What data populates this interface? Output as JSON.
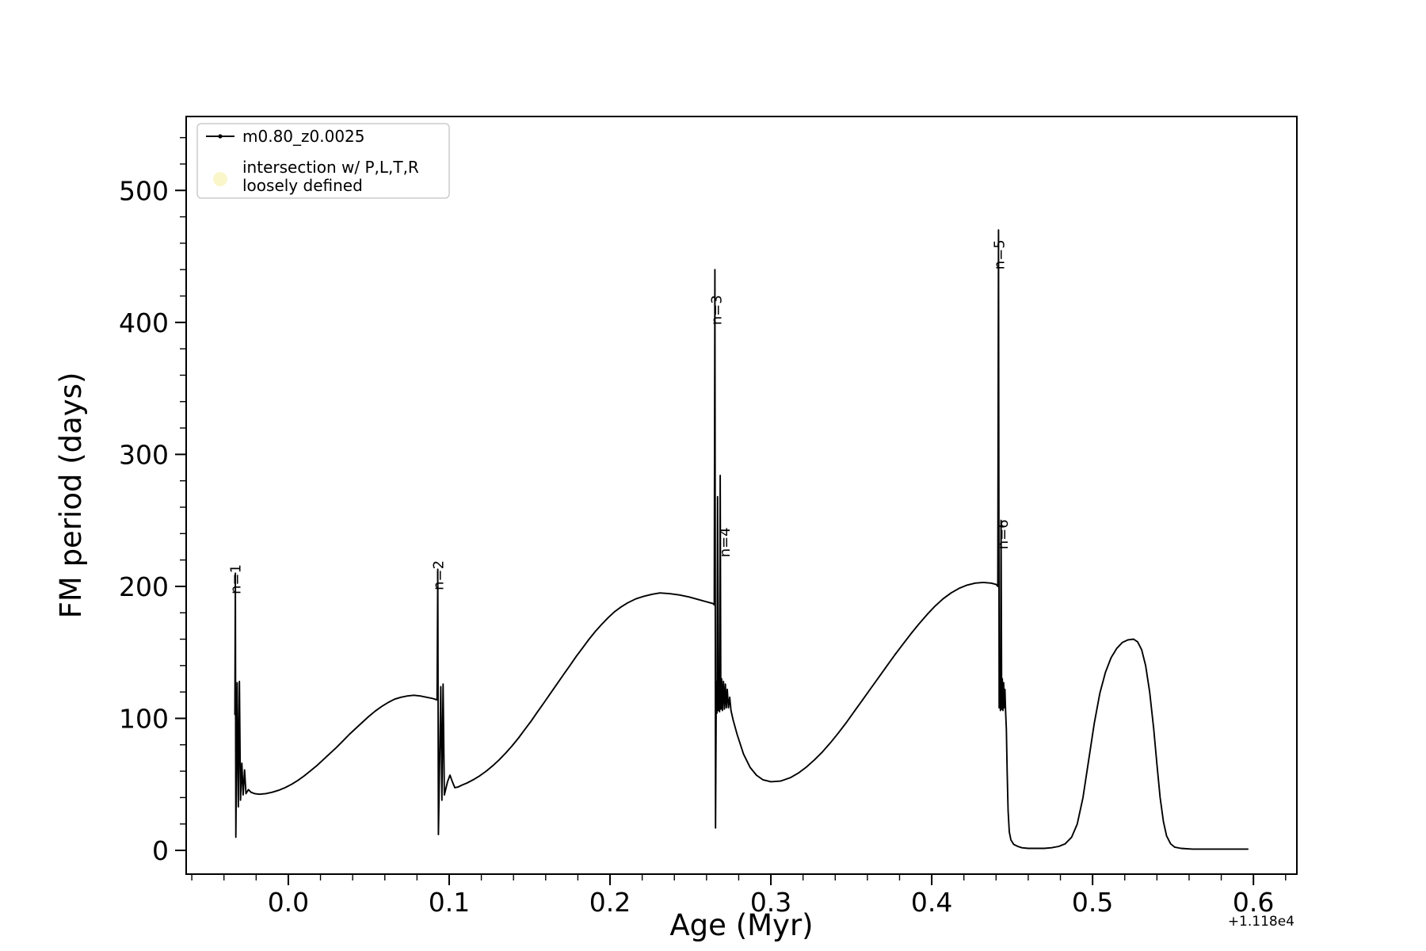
{
  "figure": {
    "background": "#ffffff"
  },
  "chart_data": {
    "type": "line",
    "title": "",
    "xlabel": "Age (Myr)",
    "ylabel": "FM period (days)",
    "x_offset_text": "+1.118e4",
    "xlim": [
      -0.0635,
      0.627
    ],
    "ylim": [
      -18,
      556
    ],
    "grid": false,
    "x_major_ticks": [
      0.0,
      0.1,
      0.2,
      0.3,
      0.4,
      0.5,
      0.6
    ],
    "x_major_tick_labels": [
      "0.0",
      "0.1",
      "0.2",
      "0.3",
      "0.4",
      "0.5",
      "0.6"
    ],
    "x_minor_step": 0.02,
    "y_major_ticks": [
      0,
      100,
      200,
      300,
      400,
      500
    ],
    "y_major_tick_labels": [
      "0",
      "100",
      "200",
      "300",
      "400",
      "500"
    ],
    "y_minor_step": 20,
    "axis_color": "#000000",
    "legend": {
      "position": "upper-left",
      "entries": [
        {
          "type": "line-dot-marker",
          "color": "#000000",
          "label": "m0.80_z0.0025"
        },
        {
          "type": "circle-marker",
          "color": "#f8f2b3",
          "opacity": 0.7,
          "label_lines": [
            "intersection w/ P,L,T,R",
            "loosely defined"
          ]
        }
      ]
    },
    "annotations": [
      {
        "label": "n=1",
        "x": -0.0298,
        "y": 194,
        "rotation": 90
      },
      {
        "label": "n=2",
        "x": 0.0962,
        "y": 197,
        "rotation": 90
      },
      {
        "label": "n=3",
        "x": 0.2692,
        "y": 398,
        "rotation": 90
      },
      {
        "label": "n=4",
        "x": 0.2743,
        "y": 222,
        "rotation": 90
      },
      {
        "label": "n=5",
        "x": 0.4449,
        "y": 440,
        "rotation": 90
      },
      {
        "label": "n=6",
        "x": 0.4472,
        "y": 228,
        "rotation": 90
      }
    ],
    "series": [
      {
        "name": "m0.80_z0.0025",
        "color": "#000000",
        "marker": "dot",
        "linestyle": "solid",
        "points": [
          [
            -0.0332,
            103
          ],
          [
            -0.0329,
            210
          ],
          [
            -0.0326,
            10
          ],
          [
            -0.0318,
            127
          ],
          [
            -0.0311,
            33
          ],
          [
            -0.0304,
            128
          ],
          [
            -0.0297,
            38
          ],
          [
            -0.0289,
            66
          ],
          [
            -0.0281,
            42
          ],
          [
            -0.0272,
            61
          ],
          [
            -0.0263,
            43
          ],
          [
            -0.0248,
            46
          ],
          [
            -0.0232,
            44
          ],
          [
            -0.021,
            43
          ],
          [
            -0.018,
            42.5
          ],
          [
            -0.014,
            43
          ],
          [
            -0.01,
            44
          ],
          [
            -0.006,
            45.5
          ],
          [
            -0.002,
            47.5
          ],
          [
            0.002,
            50
          ],
          [
            0.006,
            53
          ],
          [
            0.01,
            56.5
          ],
          [
            0.014,
            60.5
          ],
          [
            0.018,
            64.5
          ],
          [
            0.022,
            69
          ],
          [
            0.026,
            73.5
          ],
          [
            0.03,
            78
          ],
          [
            0.034,
            83
          ],
          [
            0.038,
            88
          ],
          [
            0.042,
            92.5
          ],
          [
            0.046,
            97
          ],
          [
            0.05,
            101.5
          ],
          [
            0.054,
            105.5
          ],
          [
            0.058,
            109
          ],
          [
            0.062,
            112
          ],
          [
            0.066,
            114.5
          ],
          [
            0.07,
            116
          ],
          [
            0.074,
            117
          ],
          [
            0.078,
            117.5
          ],
          [
            0.082,
            117
          ],
          [
            0.086,
            116
          ],
          [
            0.09,
            115
          ],
          [
            0.0925,
            114
          ],
          [
            0.0929,
            213
          ],
          [
            0.0933,
            12
          ],
          [
            0.0941,
            70
          ],
          [
            0.0948,
            124
          ],
          [
            0.0955,
            38
          ],
          [
            0.0962,
            126
          ],
          [
            0.097,
            42
          ],
          [
            0.0978,
            46
          ],
          [
            0.099,
            52
          ],
          [
            0.1005,
            57
          ],
          [
            0.102,
            52
          ],
          [
            0.1035,
            47.5
          ],
          [
            0.1055,
            48
          ],
          [
            0.108,
            49.5
          ],
          [
            0.111,
            51
          ],
          [
            0.115,
            53.5
          ],
          [
            0.119,
            56.5
          ],
          [
            0.123,
            60
          ],
          [
            0.127,
            64
          ],
          [
            0.131,
            68.5
          ],
          [
            0.135,
            73.5
          ],
          [
            0.139,
            79
          ],
          [
            0.143,
            85
          ],
          [
            0.147,
            91.5
          ],
          [
            0.151,
            98
          ],
          [
            0.155,
            105
          ],
          [
            0.159,
            112
          ],
          [
            0.163,
            119
          ],
          [
            0.167,
            126
          ],
          [
            0.171,
            133
          ],
          [
            0.175,
            140
          ],
          [
            0.179,
            147
          ],
          [
            0.183,
            153.5
          ],
          [
            0.187,
            160
          ],
          [
            0.191,
            166
          ],
          [
            0.195,
            171.5
          ],
          [
            0.199,
            176.5
          ],
          [
            0.203,
            181
          ],
          [
            0.207,
            184.5
          ],
          [
            0.211,
            187.5
          ],
          [
            0.216,
            190.5
          ],
          [
            0.221,
            192.5
          ],
          [
            0.226,
            194
          ],
          [
            0.231,
            195
          ],
          [
            0.237,
            194.5
          ],
          [
            0.243,
            193.5
          ],
          [
            0.249,
            192
          ],
          [
            0.255,
            190
          ],
          [
            0.261,
            188
          ],
          [
            0.264,
            187
          ],
          [
            0.2648,
            186
          ],
          [
            0.2652,
            440
          ],
          [
            0.2656,
            17
          ],
          [
            0.2661,
            128
          ],
          [
            0.2665,
            104
          ],
          [
            0.2669,
            268
          ],
          [
            0.2673,
            106
          ],
          [
            0.2677,
            131
          ],
          [
            0.2681,
            105
          ],
          [
            0.2685,
            284
          ],
          [
            0.2689,
            107
          ],
          [
            0.2694,
            130
          ],
          [
            0.2699,
            106
          ],
          [
            0.2705,
            128
          ],
          [
            0.2711,
            107
          ],
          [
            0.2717,
            126
          ],
          [
            0.2723,
            108
          ],
          [
            0.2729,
            122
          ],
          [
            0.2736,
            108
          ],
          [
            0.2744,
            116
          ],
          [
            0.2752,
            106
          ],
          [
            0.2765,
            99
          ],
          [
            0.279,
            88
          ],
          [
            0.283,
            73
          ],
          [
            0.287,
            63
          ],
          [
            0.291,
            57
          ],
          [
            0.295,
            53.5
          ],
          [
            0.3,
            52
          ],
          [
            0.306,
            52.5
          ],
          [
            0.312,
            55
          ],
          [
            0.317,
            58.5
          ],
          [
            0.322,
            63
          ],
          [
            0.327,
            68.5
          ],
          [
            0.332,
            74.5
          ],
          [
            0.337,
            81.5
          ],
          [
            0.342,
            89
          ],
          [
            0.347,
            97
          ],
          [
            0.352,
            105.5
          ],
          [
            0.357,
            114
          ],
          [
            0.362,
            122.5
          ],
          [
            0.367,
            131
          ],
          [
            0.372,
            139.5
          ],
          [
            0.377,
            148
          ],
          [
            0.382,
            156
          ],
          [
            0.387,
            164
          ],
          [
            0.392,
            171.5
          ],
          [
            0.397,
            178.5
          ],
          [
            0.402,
            185
          ],
          [
            0.407,
            190.5
          ],
          [
            0.412,
            195
          ],
          [
            0.417,
            198.5
          ],
          [
            0.422,
            201
          ],
          [
            0.427,
            202.5
          ],
          [
            0.432,
            203
          ],
          [
            0.437,
            202.5
          ],
          [
            0.44,
            201.5
          ],
          [
            0.4411,
            200
          ],
          [
            0.4415,
            470
          ],
          [
            0.4419,
            108
          ],
          [
            0.4423,
            132
          ],
          [
            0.4427,
            106
          ],
          [
            0.4431,
            250
          ],
          [
            0.4435,
            107
          ],
          [
            0.4439,
            130
          ],
          [
            0.4443,
            106
          ],
          [
            0.4447,
            127
          ],
          [
            0.4451,
            108
          ],
          [
            0.4455,
            122
          ],
          [
            0.4459,
            106
          ],
          [
            0.4464,
            92
          ],
          [
            0.4469,
            60
          ],
          [
            0.4475,
            30
          ],
          [
            0.4482,
            14
          ],
          [
            0.4492,
            8
          ],
          [
            0.451,
            4.5
          ],
          [
            0.4535,
            3
          ],
          [
            0.456,
            2
          ],
          [
            0.46,
            1.5
          ],
          [
            0.465,
            1.5
          ],
          [
            0.47,
            1.5
          ],
          [
            0.4745,
            2
          ],
          [
            0.479,
            3
          ],
          [
            0.483,
            5
          ],
          [
            0.487,
            10
          ],
          [
            0.4905,
            20
          ],
          [
            0.494,
            40
          ],
          [
            0.4975,
            68
          ],
          [
            0.501,
            96
          ],
          [
            0.5045,
            119
          ],
          [
            0.508,
            135
          ],
          [
            0.5115,
            146
          ],
          [
            0.515,
            153
          ],
          [
            0.5185,
            157.5
          ],
          [
            0.522,
            159.5
          ],
          [
            0.5255,
            160
          ],
          [
            0.528,
            158
          ],
          [
            0.5305,
            152
          ],
          [
            0.533,
            140
          ],
          [
            0.5355,
            120
          ],
          [
            0.538,
            92
          ],
          [
            0.54,
            65
          ],
          [
            0.542,
            40
          ],
          [
            0.544,
            22
          ],
          [
            0.546,
            11
          ],
          [
            0.5485,
            5
          ],
          [
            0.551,
            2.5
          ],
          [
            0.555,
            1.5
          ],
          [
            0.562,
            1
          ],
          [
            0.57,
            1
          ],
          [
            0.582,
            1
          ],
          [
            0.5965,
            1
          ]
        ]
      }
    ]
  }
}
